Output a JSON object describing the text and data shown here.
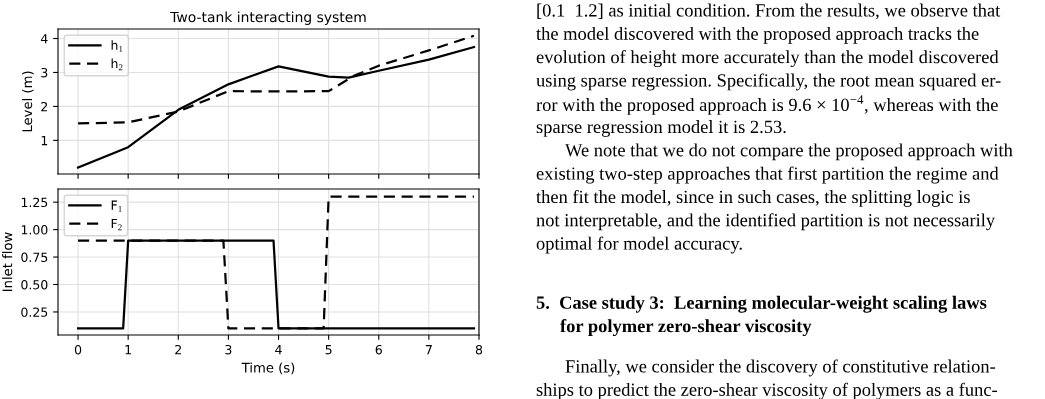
{
  "chart_data": [
    {
      "type": "line",
      "title": "Two-tank interacting system",
      "ylabel": "Level (m)",
      "xlim": [
        -0.4,
        8.0
      ],
      "xticks": [
        0,
        1,
        2,
        3,
        4,
        5,
        6,
        7,
        8
      ],
      "ylim": [
        0.01,
        4.28
      ],
      "yticks": [
        1,
        2,
        3,
        4
      ],
      "tick_labels": "y",
      "grid": true,
      "legend": "top left",
      "marker": "none",
      "series": [
        {
          "name": "h$_{1}$",
          "color": "#000000",
          "line_style": "solid",
          "x": [
            0,
            1,
            2,
            3,
            4,
            5,
            5.4,
            6,
            7,
            7.9
          ],
          "values": [
            0.2,
            0.8,
            1.9,
            2.65,
            3.18,
            2.88,
            2.85,
            3.05,
            3.38,
            3.75
          ]
        },
        {
          "name": "h$_{2}$",
          "color": "#000000",
          "line_style": "dashed",
          "x": [
            0,
            1,
            2,
            3,
            4,
            5,
            5.5,
            6,
            7,
            7.9
          ],
          "values": [
            1.5,
            1.53,
            1.85,
            2.45,
            2.44,
            2.45,
            2.9,
            3.2,
            3.65,
            4.08
          ]
        }
      ]
    },
    {
      "type": "line",
      "xlabel": "Time (s)",
      "ylabel": "Inlet flow",
      "xlim": [
        -0.4,
        8.0
      ],
      "xticks": [
        0,
        1,
        2,
        3,
        4,
        5,
        6,
        7,
        8
      ],
      "ylim": [
        0.04,
        1.37
      ],
      "yticks": [
        {
          "value": 0.25,
          "label": "0.25"
        },
        {
          "value": 0.5,
          "label": "0.50"
        },
        {
          "value": 0.75,
          "label": "0.75"
        },
        {
          "value": 1.0,
          "label": "1.00"
        },
        {
          "value": 1.25,
          "label": "1.25"
        }
      ],
      "grid": true,
      "legend": "top left",
      "marker": "none",
      "series": [
        {
          "name": "F$_{1}$",
          "color": "#000000",
          "line_style": "solid",
          "x": [
            0,
            0.9,
            1,
            3.9,
            4,
            7.9
          ],
          "values": [
            0.1,
            0.1,
            0.9,
            0.9,
            0.1,
            0.1
          ]
        },
        {
          "name": "F$_{2}$",
          "color": "#000000",
          "line_style": "dashed",
          "x": [
            0,
            2.9,
            3,
            4.9,
            5,
            7.9
          ],
          "values": [
            0.9,
            0.9,
            0.1,
            0.1,
            1.3,
            1.3
          ]
        }
      ]
    },
    {
      "type": "other",
      "title": "5.  Case study 3:  Learning molecular-weight scaling laws\nfor polymer zero-shear viscosity",
      "annotations": [
        "[0.1  1.2] as initial condition. From the results, we observe that",
        "the model discovered with the proposed approach tracks the",
        "evolution of height more accurately than the model discovered",
        "using sparse regression. Specifically, the root mean squared er-",
        "ror with the proposed approach is 9.6 × 10$^{−4}$, whereas with the",
        "sparse regression model it is 2.53.",
        "We note that we do not compare the proposed approach with",
        "existing two-step approaches that first partition the regime and",
        "then fit the model, since in such cases, the splitting logic is",
        "not interpretable, and the identified partition is not necessarily",
        "optimal for model accuracy.",
        "Finally, we consider the discovery of constitutive relation-",
        "ships to predict the zero-shear viscosity of polymers as a func-"
      ]
    }
  ]
}
